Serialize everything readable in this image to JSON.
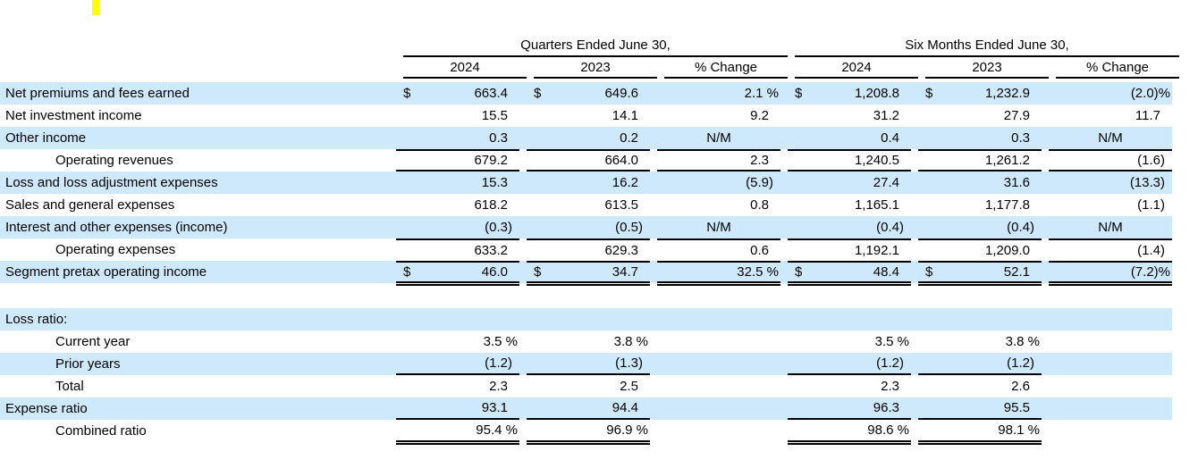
{
  "colors": {
    "row_shade": "#cde9fb",
    "highlight_marker": "#ffff00",
    "rule": "#000000"
  },
  "table": {
    "group_headers": [
      {
        "label": "Quarters Ended June 30,"
      },
      {
        "label": "Six Months Ended June 30,"
      }
    ],
    "col_headers": [
      "2024",
      "2023",
      "% Change",
      "2024",
      "2023",
      "% Change"
    ],
    "rows": [
      {
        "label": "Net premiums and fees earned",
        "indent": false,
        "shaded": true,
        "dollar": true,
        "cells": [
          "663.4",
          "649.6",
          "2.1 %",
          "1,208.8",
          "1,232.9",
          "(2.0)%"
        ]
      },
      {
        "label": "Net investment income",
        "indent": false,
        "shaded": false,
        "dollar": false,
        "cells": [
          "15.5",
          "14.1",
          "9.2",
          "31.2",
          "27.9",
          "11.7"
        ]
      },
      {
        "label": "Other income",
        "indent": false,
        "shaded": true,
        "dollar": false,
        "cells": [
          "0.3",
          "0.2",
          "N/M",
          "0.4",
          "0.3",
          "N/M"
        ]
      },
      {
        "label": "Operating revenues",
        "indent": true,
        "shaded": false,
        "dollar": false,
        "cells": [
          "679.2",
          "664.0",
          "2.3",
          "1,240.5",
          "1,261.2",
          "(1.6)"
        ],
        "rules": {
          "top": [
            0,
            1,
            2,
            3,
            4,
            5
          ],
          "bottom": [
            0,
            1,
            2,
            3,
            4,
            5
          ]
        }
      },
      {
        "label": "Loss and loss adjustment expenses",
        "indent": false,
        "shaded": true,
        "dollar": false,
        "cells": [
          "15.3",
          "16.2",
          "(5.9)",
          "27.4",
          "31.6",
          "(13.3)"
        ]
      },
      {
        "label": "Sales and general expenses",
        "indent": false,
        "shaded": false,
        "dollar": false,
        "cells": [
          "618.2",
          "613.5",
          "0.8",
          "1,165.1",
          "1,177.8",
          "(1.1)"
        ]
      },
      {
        "label": "Interest and other expenses (income)",
        "indent": false,
        "shaded": true,
        "dollar": false,
        "cells": [
          "(0.3)",
          "(0.5)",
          "N/M",
          "(0.4)",
          "(0.4)",
          "N/M"
        ]
      },
      {
        "label": "Operating expenses",
        "indent": true,
        "shaded": false,
        "dollar": false,
        "cells": [
          "633.2",
          "629.3",
          "0.6",
          "1,192.1",
          "1,209.0",
          "(1.4)"
        ],
        "rules": {
          "top": [
            0,
            1,
            2,
            3,
            4,
            5
          ]
        }
      },
      {
        "label": "Segment pretax operating income",
        "indent": false,
        "shaded": true,
        "dollar": true,
        "cells": [
          "46.0",
          "34.7",
          "32.5 %",
          "48.4",
          "52.1",
          "(7.2)%"
        ],
        "rules": {
          "top": [
            0,
            1,
            2,
            3,
            4,
            5
          ],
          "dbl": [
            0,
            1,
            2,
            3,
            4,
            5
          ]
        }
      },
      {
        "spacer": true
      },
      {
        "label": "Loss ratio:",
        "indent": false,
        "shaded": true,
        "dollar": false,
        "cells": [
          "",
          "",
          "",
          "",
          "",
          ""
        ]
      },
      {
        "label": "Current year",
        "indent": true,
        "shaded": false,
        "dollar": false,
        "cells": [
          "3.5 %",
          "3.8 %",
          "",
          "3.5 %",
          "3.8 %",
          ""
        ]
      },
      {
        "label": "Prior years",
        "indent": true,
        "shaded": true,
        "dollar": false,
        "cells": [
          "(1.2)",
          "(1.3)",
          "",
          "(1.2)",
          "(1.2)",
          ""
        ],
        "rules": {
          "bottom": [
            0,
            1,
            3,
            4
          ]
        }
      },
      {
        "label": "Total",
        "indent": true,
        "shaded": false,
        "dollar": false,
        "cells": [
          "2.3",
          "2.5",
          "",
          "2.3",
          "2.6",
          ""
        ]
      },
      {
        "label": "Expense ratio",
        "indent": false,
        "shaded": true,
        "dollar": false,
        "cells": [
          "93.1",
          "94.4",
          "",
          "96.3",
          "95.5",
          ""
        ],
        "rules": {
          "bottom": [
            0,
            1,
            3,
            4
          ]
        }
      },
      {
        "label": "Combined ratio",
        "indent": true,
        "shaded": false,
        "dollar": false,
        "cells": [
          "95.4 %",
          "96.9 %",
          "",
          "98.6 %",
          "98.1 %",
          ""
        ],
        "rules": {
          "dbl": [
            0,
            1,
            3,
            4
          ]
        }
      }
    ]
  }
}
